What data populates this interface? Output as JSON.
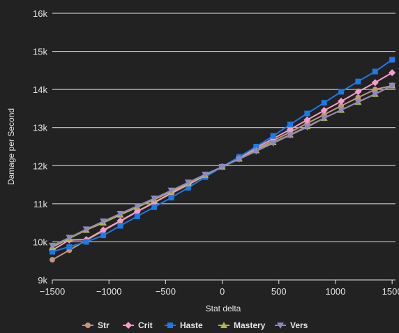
{
  "chart_data": {
    "type": "line",
    "xlabel": "Stat delta",
    "ylabel": "Damage per Second",
    "xlim": [
      -1500,
      1530
    ],
    "ylim": [
      9000,
      16000
    ],
    "x_ticks": [
      -1500,
      -1000,
      -500,
      0,
      500,
      1000,
      1500
    ],
    "x_tick_labels": [
      "−1500",
      "−1000",
      "−500",
      "0",
      "500",
      "1000",
      "1500"
    ],
    "y_ticks": [
      9000,
      10000,
      11000,
      12000,
      13000,
      14000,
      15000,
      16000
    ],
    "y_tick_labels": [
      "9k",
      "10k",
      "11k",
      "12k",
      "13k",
      "14k",
      "15k",
      "16k"
    ],
    "grid": "horizontal",
    "legend_position": "bottom",
    "x": [
      -1500,
      -1350,
      -1200,
      -1050,
      -900,
      -750,
      -600,
      -450,
      -300,
      -150,
      0,
      150,
      300,
      450,
      600,
      750,
      900,
      1050,
      1200,
      1350,
      1500
    ],
    "series": [
      {
        "name": "Str",
        "color": "#c0977a",
        "marker": "circle",
        "values": [
          9530,
          9780,
          10040,
          10290,
          10540,
          10790,
          11030,
          11270,
          11500,
          11740,
          11970,
          12200,
          12430,
          12660,
          12880,
          13110,
          13340,
          13570,
          13790,
          14000,
          14100
        ]
      },
      {
        "name": "Crit",
        "color": "#f39ec8",
        "marker": "diamond",
        "values": [
          9780,
          10050,
          10060,
          10310,
          10550,
          10800,
          11040,
          11280,
          11510,
          11740,
          11970,
          12220,
          12470,
          12710,
          12950,
          13200,
          13450,
          13690,
          13940,
          14180,
          14440
        ]
      },
      {
        "name": "Haste",
        "color": "#1a7ae8",
        "marker": "square",
        "values": [
          9740,
          9870,
          10000,
          10170,
          10420,
          10670,
          10910,
          11160,
          11420,
          11700,
          11970,
          12230,
          12500,
          12780,
          13080,
          13370,
          13650,
          13940,
          14210,
          14470,
          14780
        ]
      },
      {
        "name": "Mastery",
        "color": "#b5b54c",
        "marker": "triangle",
        "values": [
          9860,
          10090,
          10310,
          10500,
          10710,
          10910,
          11110,
          11320,
          11530,
          11750,
          11970,
          12180,
          12400,
          12610,
          12810,
          13030,
          13250,
          13460,
          13670,
          13880,
          14100
        ]
      },
      {
        "name": "Vers",
        "color": "#8f88c0",
        "marker": "triangle-down",
        "values": [
          9900,
          10110,
          10330,
          10540,
          10740,
          10940,
          11140,
          11350,
          11560,
          11770,
          11970,
          12170,
          12380,
          12590,
          12800,
          13010,
          13250,
          13460,
          13670,
          13880,
          14100
        ]
      }
    ]
  }
}
